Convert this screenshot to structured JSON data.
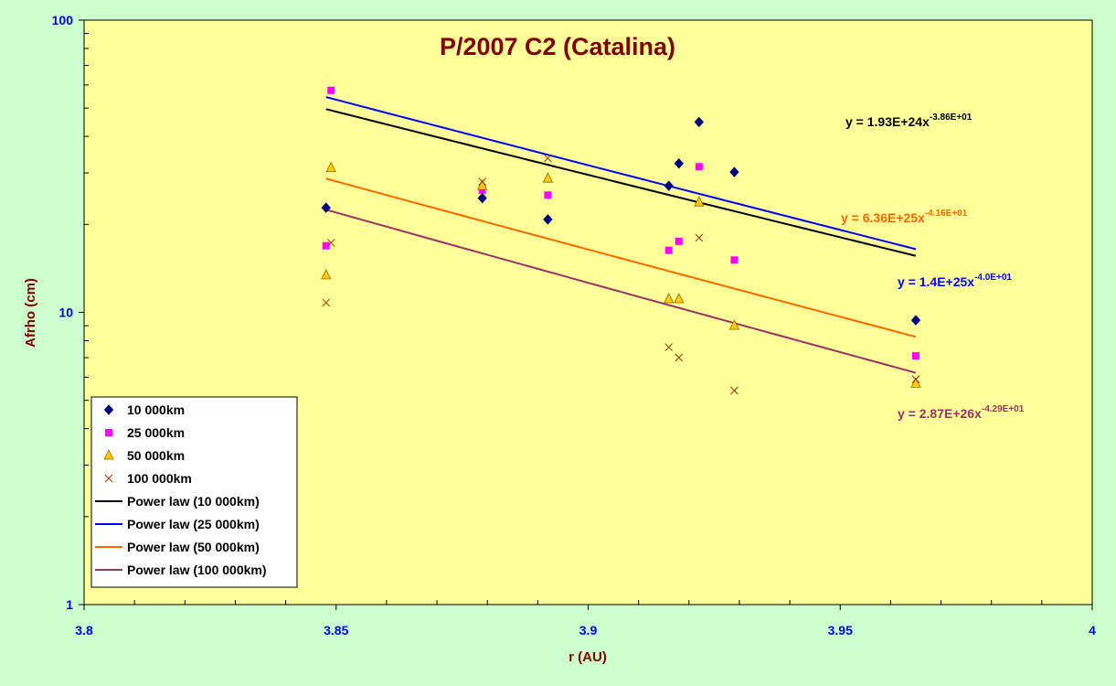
{
  "chart_data": {
    "type": "scatter",
    "title": "P/2007 C2 (Catalina)",
    "xlabel": "r (AU)",
    "ylabel": "Afrho (cm)",
    "xlim": [
      3.8,
      4.0
    ],
    "ylim": [
      1,
      100
    ],
    "yscale": "log",
    "x_ticks": [
      "3.8",
      "3.85",
      "3.9",
      "3.95",
      "4"
    ],
    "y_ticks": [
      "1",
      "10",
      "100"
    ],
    "grid": false,
    "legend_position": "bottom-left",
    "series": [
      {
        "name": "10 000km",
        "marker": "diamond",
        "color": "#000080",
        "points": [
          [
            3.848,
            22.8
          ],
          [
            3.879,
            24.6
          ],
          [
            3.892,
            20.8
          ],
          [
            3.916,
            27.1
          ],
          [
            3.918,
            32.3
          ],
          [
            3.922,
            44.8
          ],
          [
            3.929,
            30.2
          ],
          [
            3.965,
            9.4
          ]
        ]
      },
      {
        "name": "25 000km",
        "marker": "square",
        "color": "#ff00ff",
        "points": [
          [
            3.849,
            57.5
          ],
          [
            3.848,
            16.9
          ],
          [
            3.879,
            26.2
          ],
          [
            3.892,
            25.2
          ],
          [
            3.916,
            16.3
          ],
          [
            3.918,
            17.5
          ],
          [
            3.922,
            31.5
          ],
          [
            3.929,
            15.1
          ],
          [
            3.965,
            7.1
          ]
        ]
      },
      {
        "name": "50 000km",
        "marker": "triangle",
        "color": "#ffcc00",
        "points": [
          [
            3.848,
            13.4
          ],
          [
            3.849,
            31.2
          ],
          [
            3.879,
            27.1
          ],
          [
            3.892,
            28.7
          ],
          [
            3.916,
            11.1
          ],
          [
            3.918,
            11.1
          ],
          [
            3.922,
            23.8
          ],
          [
            3.929,
            9.0
          ],
          [
            3.965,
            5.7
          ]
        ]
      },
      {
        "name": "100 000km",
        "marker": "x",
        "color": "#993300",
        "points": [
          [
            3.849,
            17.3
          ],
          [
            3.848,
            10.8
          ],
          [
            3.879,
            28.0
          ],
          [
            3.892,
            33.7
          ],
          [
            3.916,
            7.6
          ],
          [
            3.918,
            7.0
          ],
          [
            3.922,
            18.0
          ],
          [
            3.929,
            5.4
          ],
          [
            3.965,
            5.9
          ]
        ]
      }
    ],
    "trendlines": [
      {
        "name": "Power law (10 000km)",
        "color": "#000000",
        "label_color": "#000000",
        "coef": 1.93e+24,
        "exponent": -38.6,
        "equation_base": "y = 1.93E+24x",
        "equation_exp": "-3.86E+01",
        "x_range": [
          3.848,
          3.965
        ]
      },
      {
        "name": "Power law (25 000km)",
        "color": "#0000ff",
        "label_color": "#0000ff",
        "coef": 1.4e+25,
        "exponent": -40.0,
        "equation_base": "y = 1.4E+25x",
        "equation_exp": "-4.0E+01",
        "x_range": [
          3.848,
          3.965
        ]
      },
      {
        "name": "Power law (50 000km)",
        "color": "#ff6600",
        "label_color": "#ff6600",
        "coef": 6.36e+25,
        "exponent": -41.6,
        "equation_base": "y = 6.36E+25x",
        "equation_exp": "-4.16E+01",
        "x_range": [
          3.848,
          3.965
        ]
      },
      {
        "name": "Power law (100 000km)",
        "color": "#993366",
        "label_color": "#993366",
        "coef": 2.87e+26,
        "exponent": -42.9,
        "equation_base": "y = 2.87E+26x",
        "equation_exp": "-4.29E+01",
        "x_range": [
          3.848,
          3.965
        ]
      }
    ]
  },
  "colors": {
    "background": "#ccffcc",
    "plot_area": "#ffff99",
    "title": "#800000",
    "axis_labels": "#800000",
    "tick_labels": "#0000ff"
  }
}
